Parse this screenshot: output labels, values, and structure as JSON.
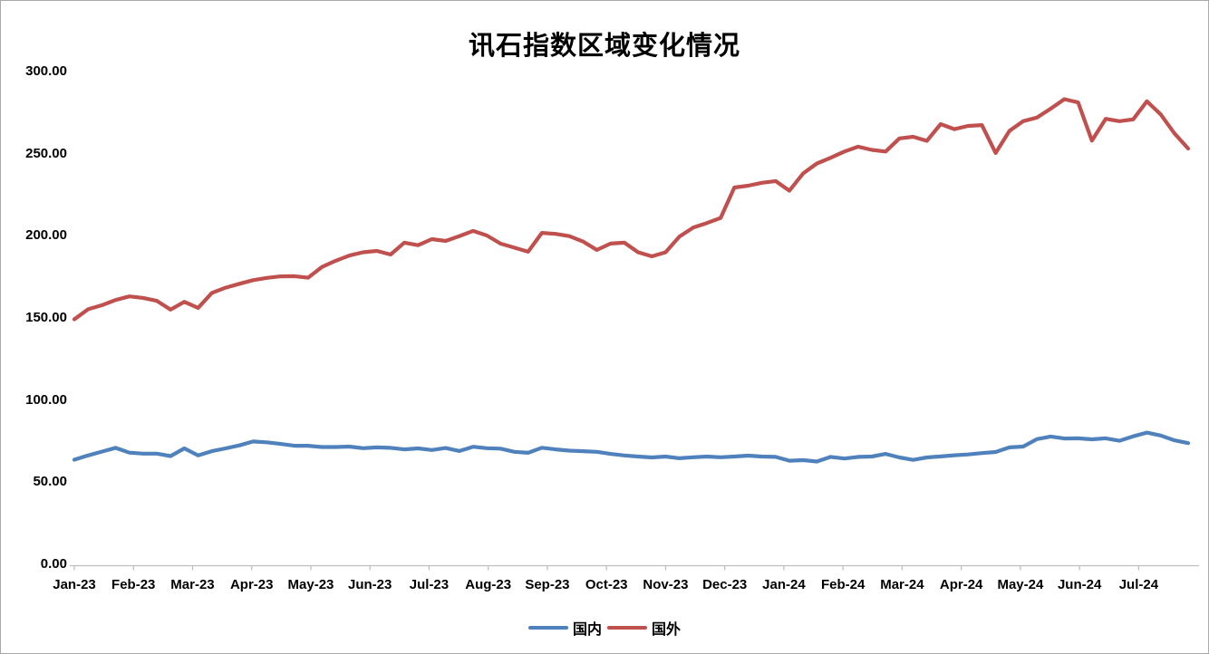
{
  "chart_data": {
    "type": "line",
    "title": "讯石指数区域变化情况",
    "xlabel": "",
    "ylabel": "",
    "ylim": [
      0,
      300
    ],
    "y_tick_labels": [
      "0.00",
      "50.00",
      "100.00",
      "150.00",
      "200.00",
      "250.00",
      "300.00"
    ],
    "y_tick_values": [
      0,
      50,
      100,
      150,
      200,
      250,
      300
    ],
    "x_tick_labels": [
      "Jan-23",
      "Feb-23",
      "Mar-23",
      "Apr-23",
      "May-23",
      "Jun-23",
      "Jul-23",
      "Aug-23",
      "Sep-23",
      "Oct-23",
      "Nov-23",
      "Dec-23",
      "Jan-24",
      "Feb-24",
      "Mar-24",
      "Apr-24",
      "May-24",
      "Jun-24",
      "Jul-24"
    ],
    "x_unit": "week",
    "grid": false,
    "legend_position": "bottom",
    "axis_color": "#bfbfbf",
    "series": [
      {
        "name": "国内",
        "color": "#4f81bd",
        "values": [
          63.7,
          66.3,
          68.6,
          70.9,
          68.0,
          67.4,
          67.4,
          65.9,
          70.6,
          66.3,
          68.9,
          70.6,
          72.4,
          74.8,
          74.3,
          73.3,
          72.2,
          72.2,
          71.4,
          71.4,
          71.7,
          70.7,
          71.2,
          70.9,
          70.0,
          70.6,
          69.6,
          70.8,
          69.0,
          71.6,
          70.7,
          70.4,
          68.5,
          67.9,
          71.0,
          70.0,
          69.2,
          68.9,
          68.5,
          67.2,
          66.3,
          65.6,
          65.1,
          65.6,
          64.6,
          65.2,
          65.6,
          65.2,
          65.6,
          66.2,
          65.6,
          65.4,
          63.1,
          63.4,
          62.6,
          65.4,
          64.4,
          65.4,
          65.6,
          67.2,
          65.1,
          63.6,
          65.1,
          65.7,
          66.4,
          66.9,
          67.7,
          68.4,
          71.2,
          71.7,
          76.2,
          77.8,
          76.6,
          76.7,
          76.1,
          76.7,
          75.2,
          77.9,
          80.2,
          78.4,
          75.5,
          73.8
        ]
      },
      {
        "name": "国外",
        "color": "#c0504d",
        "values": [
          149.2,
          155.3,
          157.7,
          160.9,
          163.1,
          162.2,
          160.4,
          155.1,
          159.8,
          156.1,
          165.2,
          168.4,
          170.8,
          173.0,
          174.4,
          175.3,
          175.4,
          174.5,
          181.0,
          184.8,
          188.0,
          190.0,
          190.8,
          188.6,
          195.8,
          194.3,
          198.0,
          196.9,
          199.8,
          203.0,
          200.2,
          195.2,
          192.8,
          190.3,
          201.8,
          201.2,
          199.8,
          196.5,
          191.4,
          195.3,
          195.8,
          190.0,
          187.5,
          190.0,
          199.5,
          205.0,
          207.8,
          210.9,
          229.4,
          230.5,
          232.3,
          233.3,
          227.5,
          238.0,
          244.0,
          247.5,
          251.3,
          254.3,
          252.3,
          251.3,
          259.3,
          260.3,
          257.8,
          268.0,
          264.9,
          266.9,
          267.4,
          250.4,
          263.9,
          269.8,
          272.0,
          277.4,
          283.2,
          281.2,
          257.9,
          271.2,
          269.8,
          270.9,
          281.9,
          273.9,
          262.4,
          253.1
        ]
      }
    ]
  }
}
